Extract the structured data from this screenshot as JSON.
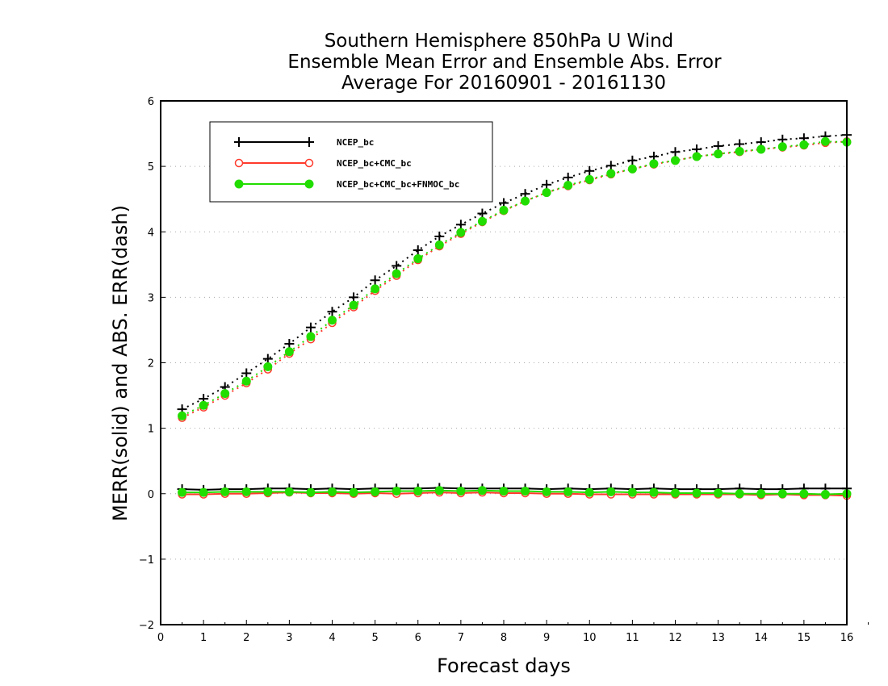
{
  "chart_data": {
    "type": "line",
    "title_lines": [
      "Southern Hemisphere 850hPa U Wind",
      "Ensemble Mean Error and Ensemble Abs. Error",
      "Average For 20160901 - 20161130"
    ],
    "xlabel": "Forecast days",
    "ylabel": "MERR(solid) and ABS. ERR(dash)",
    "xlim": [
      0,
      16
    ],
    "ylim": [
      -2,
      6
    ],
    "xticks": [
      "0",
      "1",
      "2",
      "3",
      "4",
      "5",
      "6",
      "7",
      "8",
      "9",
      "10",
      "11",
      "12",
      "13",
      "14",
      "15",
      "16"
    ],
    "yticks": [
      "-2",
      "-1",
      "0",
      "1",
      "2",
      "3",
      "4",
      "5",
      "6"
    ],
    "grid": true,
    "legend_position": "top-left",
    "x": [
      0.5,
      1,
      1.5,
      2,
      2.5,
      3,
      3.5,
      4,
      4.5,
      5,
      5.5,
      6,
      6.5,
      7,
      7.5,
      8,
      8.5,
      9,
      9.5,
      10,
      10.5,
      11,
      11.5,
      12,
      12.5,
      13,
      13.5,
      14,
      14.5,
      15,
      15.5,
      16
    ],
    "series": [
      {
        "name": "NCEP_bc",
        "color": "#000000",
        "marker": "plus",
        "merr": [
          0.07,
          0.06,
          0.07,
          0.07,
          0.08,
          0.08,
          0.07,
          0.08,
          0.07,
          0.08,
          0.08,
          0.08,
          0.09,
          0.08,
          0.08,
          0.08,
          0.08,
          0.07,
          0.08,
          0.07,
          0.08,
          0.07,
          0.08,
          0.07,
          0.07,
          0.07,
          0.08,
          0.07,
          0.07,
          0.08,
          0.08,
          0.08
        ],
        "abs_err": [
          1.29,
          1.45,
          1.63,
          1.84,
          2.06,
          2.29,
          2.54,
          2.78,
          3.0,
          3.26,
          3.48,
          3.72,
          3.93,
          4.11,
          4.28,
          4.44,
          4.58,
          4.72,
          4.83,
          4.93,
          5.01,
          5.09,
          5.15,
          5.22,
          5.26,
          5.31,
          5.34,
          5.37,
          5.41,
          5.43,
          5.46,
          5.48
        ]
      },
      {
        "name": "NCEP_bc+CMC_bc",
        "color": "#ff3a2c",
        "marker": "open-circle",
        "merr": [
          -0.01,
          -0.01,
          0.0,
          0.0,
          0.01,
          0.02,
          0.01,
          0.01,
          0.0,
          0.01,
          0.0,
          0.01,
          0.02,
          0.01,
          0.02,
          0.01,
          0.01,
          0.0,
          0.0,
          -0.01,
          -0.01,
          -0.01,
          -0.01,
          -0.01,
          -0.01,
          -0.01,
          -0.01,
          -0.02,
          -0.01,
          -0.02,
          -0.02,
          -0.03
        ],
        "abs_err": [
          1.16,
          1.32,
          1.5,
          1.69,
          1.9,
          2.14,
          2.36,
          2.61,
          2.85,
          3.1,
          3.33,
          3.57,
          3.78,
          3.97,
          4.15,
          4.32,
          4.47,
          4.6,
          4.7,
          4.79,
          4.88,
          4.96,
          5.03,
          5.09,
          5.15,
          5.19,
          5.22,
          5.26,
          5.29,
          5.32,
          5.36,
          5.38
        ]
      },
      {
        "name": "NCEP_bc+CMC_bc+FNMOC_bc",
        "color": "#22dd00",
        "marker": "filled-circle",
        "merr": [
          0.02,
          0.02,
          0.03,
          0.03,
          0.03,
          0.03,
          0.02,
          0.03,
          0.02,
          0.03,
          0.04,
          0.04,
          0.05,
          0.04,
          0.05,
          0.04,
          0.04,
          0.03,
          0.03,
          0.02,
          0.03,
          0.02,
          0.02,
          0.01,
          0.01,
          0.01,
          0.0,
          0.0,
          0.0,
          0.0,
          -0.01,
          0.0
        ],
        "abs_err": [
          1.19,
          1.35,
          1.53,
          1.72,
          1.94,
          2.17,
          2.4,
          2.65,
          2.88,
          3.13,
          3.36,
          3.59,
          3.8,
          3.99,
          4.16,
          4.33,
          4.47,
          4.6,
          4.71,
          4.8,
          4.89,
          4.96,
          5.04,
          5.09,
          5.15,
          5.19,
          5.23,
          5.26,
          5.3,
          5.33,
          5.38,
          5.37
        ]
      }
    ]
  }
}
